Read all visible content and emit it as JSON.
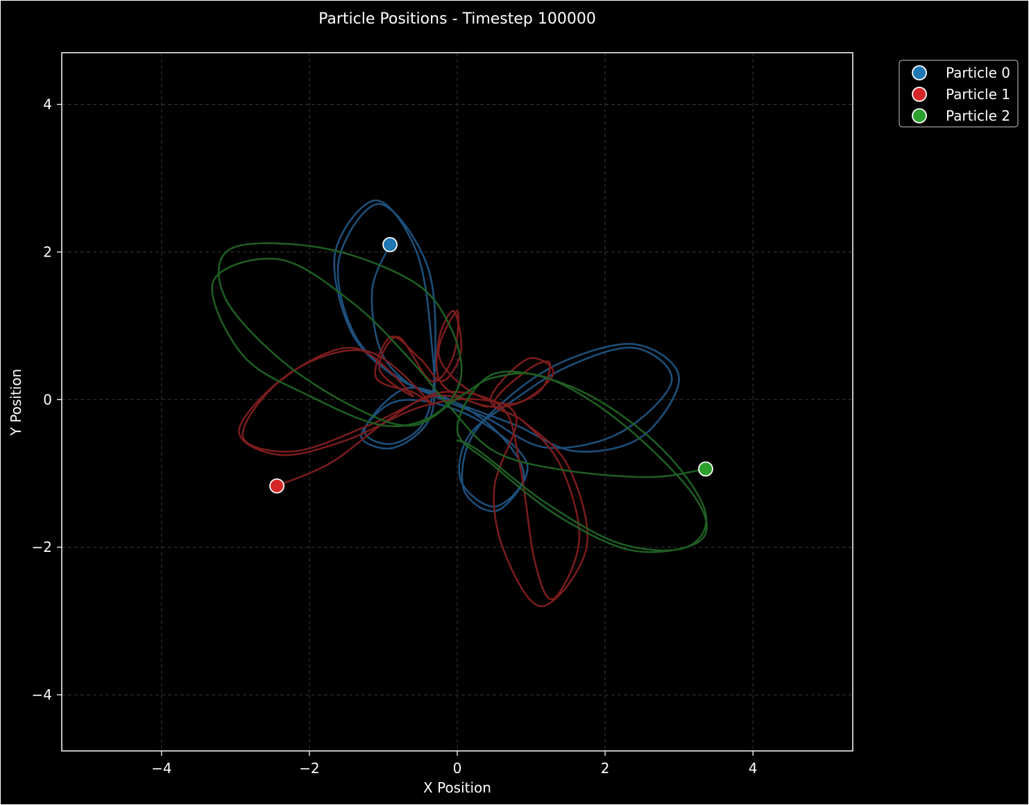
{
  "chart_data": {
    "type": "scatter",
    "title": "Particle Positions - Timestep 100000",
    "xlabel": "X Position",
    "ylabel": "Y Position",
    "xlim": [
      -5.35,
      5.35
    ],
    "ylim": [
      -4.76,
      4.7
    ],
    "xticks": [
      -4,
      -2,
      0,
      2,
      4
    ],
    "yticks": [
      -4,
      -2,
      0,
      2,
      4
    ],
    "xtick_labels": [
      "−4",
      "−2",
      "0",
      "2",
      "4"
    ],
    "ytick_labels": [
      "−4",
      "−2",
      "0",
      "2",
      "4"
    ],
    "grid": true,
    "legend_position": "outside-top-right",
    "background": "#000000",
    "series": [
      {
        "name": "Particle 0",
        "color": "#1f77b4",
        "trail_color": "#1d4f7a",
        "position": {
          "x": -0.91,
          "y": 2.1
        },
        "trail": [
          [
            -0.91,
            2.1
          ],
          [
            -1.15,
            1.5
          ],
          [
            -1.05,
            0.7
          ],
          [
            -0.7,
            0.25
          ],
          [
            -0.2,
            0.0
          ],
          [
            0.4,
            -0.25
          ],
          [
            1.2,
            -0.65
          ],
          [
            2.2,
            -0.45
          ],
          [
            2.9,
            0.25
          ],
          [
            2.4,
            0.7
          ],
          [
            1.5,
            0.45
          ],
          [
            0.7,
            -0.05
          ],
          [
            0.15,
            -0.5
          ],
          [
            0.05,
            -1.1
          ],
          [
            0.5,
            -1.45
          ],
          [
            0.9,
            -1.05
          ],
          [
            0.6,
            -0.5
          ],
          [
            0.0,
            -0.05
          ],
          [
            -0.7,
            0.15
          ],
          [
            -1.25,
            -0.4
          ],
          [
            -0.9,
            -0.6
          ],
          [
            -0.45,
            -0.3
          ],
          [
            -0.3,
            0.5
          ],
          [
            -0.4,
            1.8
          ],
          [
            -1.05,
            2.65
          ],
          [
            -1.6,
            1.9
          ],
          [
            -1.4,
            0.9
          ],
          [
            -0.8,
            0.3
          ],
          [
            0.0,
            -0.05
          ],
          [
            0.8,
            -0.35
          ],
          [
            1.6,
            -0.7
          ],
          [
            2.5,
            -0.5
          ],
          [
            3.0,
            0.3
          ],
          [
            2.4,
            0.75
          ],
          [
            1.4,
            0.5
          ],
          [
            0.6,
            -0.05
          ],
          [
            0.15,
            -0.6
          ],
          [
            0.1,
            -1.25
          ],
          [
            0.55,
            -1.5
          ],
          [
            0.95,
            -0.9
          ],
          [
            0.4,
            -0.35
          ],
          [
            -0.3,
            -0.05
          ],
          [
            -0.9,
            -0.05
          ],
          [
            -1.3,
            -0.5
          ],
          [
            -0.85,
            -0.65
          ],
          [
            -0.35,
            -0.2
          ],
          [
            -0.35,
            0.8
          ],
          [
            -0.55,
            2.0
          ],
          [
            -1.1,
            2.7
          ],
          [
            -1.65,
            2.0
          ],
          [
            -1.45,
            0.95
          ],
          [
            -0.9,
            0.35
          ],
          [
            -0.2,
            0.0
          ]
        ]
      },
      {
        "name": "Particle 1",
        "color": "#d62728",
        "trail_color": "#7a1c1d",
        "position": {
          "x": -2.44,
          "y": -1.17
        },
        "trail": [
          [
            -2.44,
            -1.17
          ],
          [
            -1.7,
            -0.85
          ],
          [
            -0.9,
            -0.25
          ],
          [
            -0.2,
            0.1
          ],
          [
            0.6,
            -0.1
          ],
          [
            0.85,
            -0.9
          ],
          [
            1.05,
            -2.2
          ],
          [
            1.3,
            -2.7
          ],
          [
            1.65,
            -1.9
          ],
          [
            1.4,
            -0.9
          ],
          [
            0.9,
            -0.3
          ],
          [
            0.5,
            -0.05
          ],
          [
            0.95,
            0.4
          ],
          [
            1.25,
            0.5
          ],
          [
            1.1,
            0.1
          ],
          [
            0.5,
            -0.1
          ],
          [
            -0.2,
            0.2
          ],
          [
            -0.25,
            0.8
          ],
          [
            -0.05,
            1.2
          ],
          [
            0.05,
            0.65
          ],
          [
            -0.2,
            0.25
          ],
          [
            -0.5,
            0.55
          ],
          [
            -0.9,
            0.85
          ],
          [
            -1.1,
            0.3
          ],
          [
            -0.6,
            0.1
          ],
          [
            -0.35,
            -0.05
          ],
          [
            -1.2,
            0.65
          ],
          [
            -2.2,
            0.4
          ],
          [
            -2.95,
            -0.4
          ],
          [
            -2.4,
            -0.75
          ],
          [
            -1.5,
            -0.55
          ],
          [
            -0.5,
            -0.1
          ],
          [
            0.3,
            0.0
          ],
          [
            0.8,
            -0.25
          ],
          [
            0.5,
            -1.2
          ],
          [
            0.65,
            -2.1
          ],
          [
            1.15,
            -2.8
          ],
          [
            1.75,
            -2.0
          ],
          [
            1.5,
            -0.9
          ],
          [
            0.9,
            -0.3
          ],
          [
            0.45,
            0.0
          ],
          [
            0.95,
            0.55
          ],
          [
            1.3,
            0.35
          ],
          [
            0.8,
            -0.05
          ],
          [
            0.2,
            0.1
          ],
          [
            -0.25,
            0.6
          ],
          [
            0.0,
            1.2
          ],
          [
            -0.05,
            0.6
          ],
          [
            -0.35,
            0.25
          ],
          [
            -0.8,
            0.85
          ],
          [
            -1.05,
            0.4
          ],
          [
            -0.6,
            0.05
          ],
          [
            -1.4,
            0.7
          ],
          [
            -2.4,
            0.25
          ],
          [
            -2.9,
            -0.5
          ],
          [
            -2.2,
            -0.7
          ],
          [
            -1.2,
            -0.35
          ],
          [
            -0.3,
            0.05
          ],
          [
            0.4,
            -0.1
          ]
        ]
      },
      {
        "name": "Particle 2",
        "color": "#2ca02c",
        "trail_color": "#1e5e22",
        "position": {
          "x": 3.36,
          "y": -0.94
        },
        "trail": [
          [
            3.36,
            -0.94
          ],
          [
            2.6,
            -1.05
          ],
          [
            1.4,
            -0.95
          ],
          [
            0.5,
            -0.7
          ],
          [
            -0.1,
            -0.1
          ],
          [
            -0.6,
            0.5
          ],
          [
            -1.4,
            1.3
          ],
          [
            -2.4,
            1.9
          ],
          [
            -3.3,
            1.6
          ],
          [
            -2.9,
            0.6
          ],
          [
            -2.0,
            0.05
          ],
          [
            -1.0,
            -0.35
          ],
          [
            -0.3,
            -0.2
          ],
          [
            0.05,
            0.3
          ],
          [
            -0.1,
            1.0
          ],
          [
            -0.6,
            1.6
          ],
          [
            -1.8,
            2.05
          ],
          [
            -3.05,
            2.05
          ],
          [
            -3.15,
            1.4
          ],
          [
            -2.4,
            0.55
          ],
          [
            -1.4,
            -0.1
          ],
          [
            -0.6,
            -0.35
          ],
          [
            0.05,
            0.05
          ],
          [
            0.5,
            0.3
          ],
          [
            1.2,
            0.3
          ],
          [
            2.2,
            -0.3
          ],
          [
            3.2,
            -1.3
          ],
          [
            3.3,
            -1.9
          ],
          [
            2.4,
            -2.05
          ],
          [
            1.4,
            -1.6
          ],
          [
            0.5,
            -0.9
          ],
          [
            0.0,
            -0.4
          ],
          [
            0.5,
            0.35
          ],
          [
            1.6,
            0.15
          ],
          [
            2.7,
            -0.6
          ],
          [
            3.35,
            -1.5
          ],
          [
            3.1,
            -2.0
          ],
          [
            2.2,
            -1.95
          ],
          [
            1.2,
            -1.4
          ],
          [
            0.3,
            -0.7
          ],
          [
            0.0,
            -0.55
          ]
        ]
      }
    ]
  }
}
